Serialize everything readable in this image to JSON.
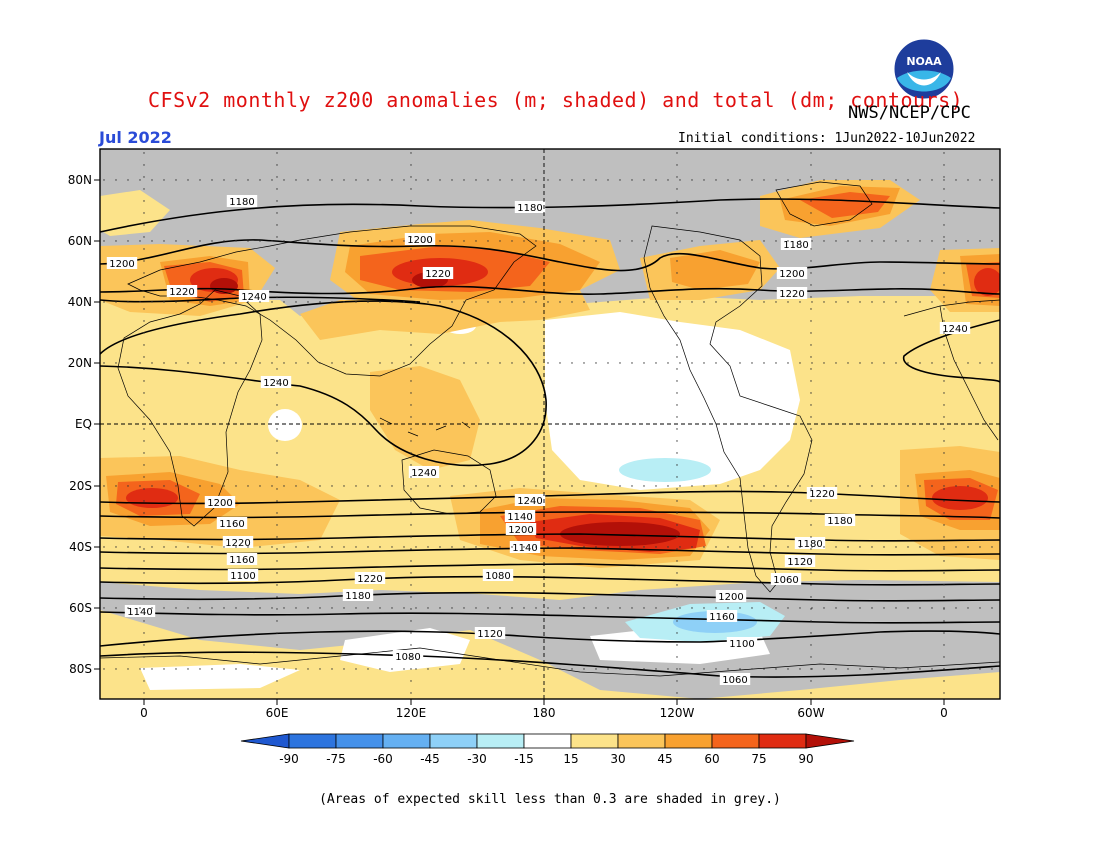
{
  "title": "CFSv2 monthly z200 anomalies (m; shaded) and total (dm; contours)",
  "agency": "NWS/NCEP/CPC",
  "logo_text": "NOAA",
  "valid_month": "Jul 2022",
  "initial_conditions": "Initial conditions: 1Jun2022-10Jun2022",
  "footnote": "(Areas of expected skill less than 0.3 are shaded in grey.)",
  "colors": {
    "skill_grey": "#bfbfbf",
    "neutral": "#ffffff",
    "pos_15_30": "#fce38a",
    "pos_30_45": "#fbc55a",
    "pos_45_60": "#f8a130",
    "pos_60_75": "#f4641c",
    "pos_75_90": "#e02c12",
    "pos_gt_90": "#b31008",
    "neg_15_30": "#b8eef5",
    "neg_30_45": "#8ed0f7",
    "neg_45_60": "#65b0f2",
    "neg_60_75": "#4591ea",
    "neg_75_90": "#2d74de",
    "neg_lt_90": "#1f58d0",
    "title_red": "#e01010",
    "month_blue": "#2a4bd7"
  },
  "map": {
    "lat_ticks": [
      "80N",
      "60N",
      "40N",
      "20N",
      "EQ",
      "20S",
      "40S",
      "60S",
      "80S"
    ],
    "lon_ticks": [
      "0",
      "60E",
      "120E",
      "180",
      "120W",
      "60W",
      "0"
    ],
    "contour_unit": "dm",
    "contour_labels": [
      "1180",
      "1180",
      "1180",
      "1200",
      "1200",
      "1200",
      "1220",
      "1220",
      "1220",
      "1240",
      "1240",
      "1240",
      "1240",
      "1240",
      "1220",
      "1200",
      "1180",
      "1160",
      "1140",
      "1220",
      "1200",
      "1180",
      "1160",
      "1140",
      "1120",
      "1100",
      "1080",
      "1060",
      "1220",
      "1200",
      "1180",
      "1160",
      "1140",
      "1120",
      "1100",
      "1080",
      "1060"
    ]
  },
  "colorbar": {
    "tick_labels": [
      "-90",
      "-75",
      "-60",
      "-45",
      "-30",
      "-15",
      "15",
      "30",
      "45",
      "60",
      "75",
      "90"
    ]
  }
}
